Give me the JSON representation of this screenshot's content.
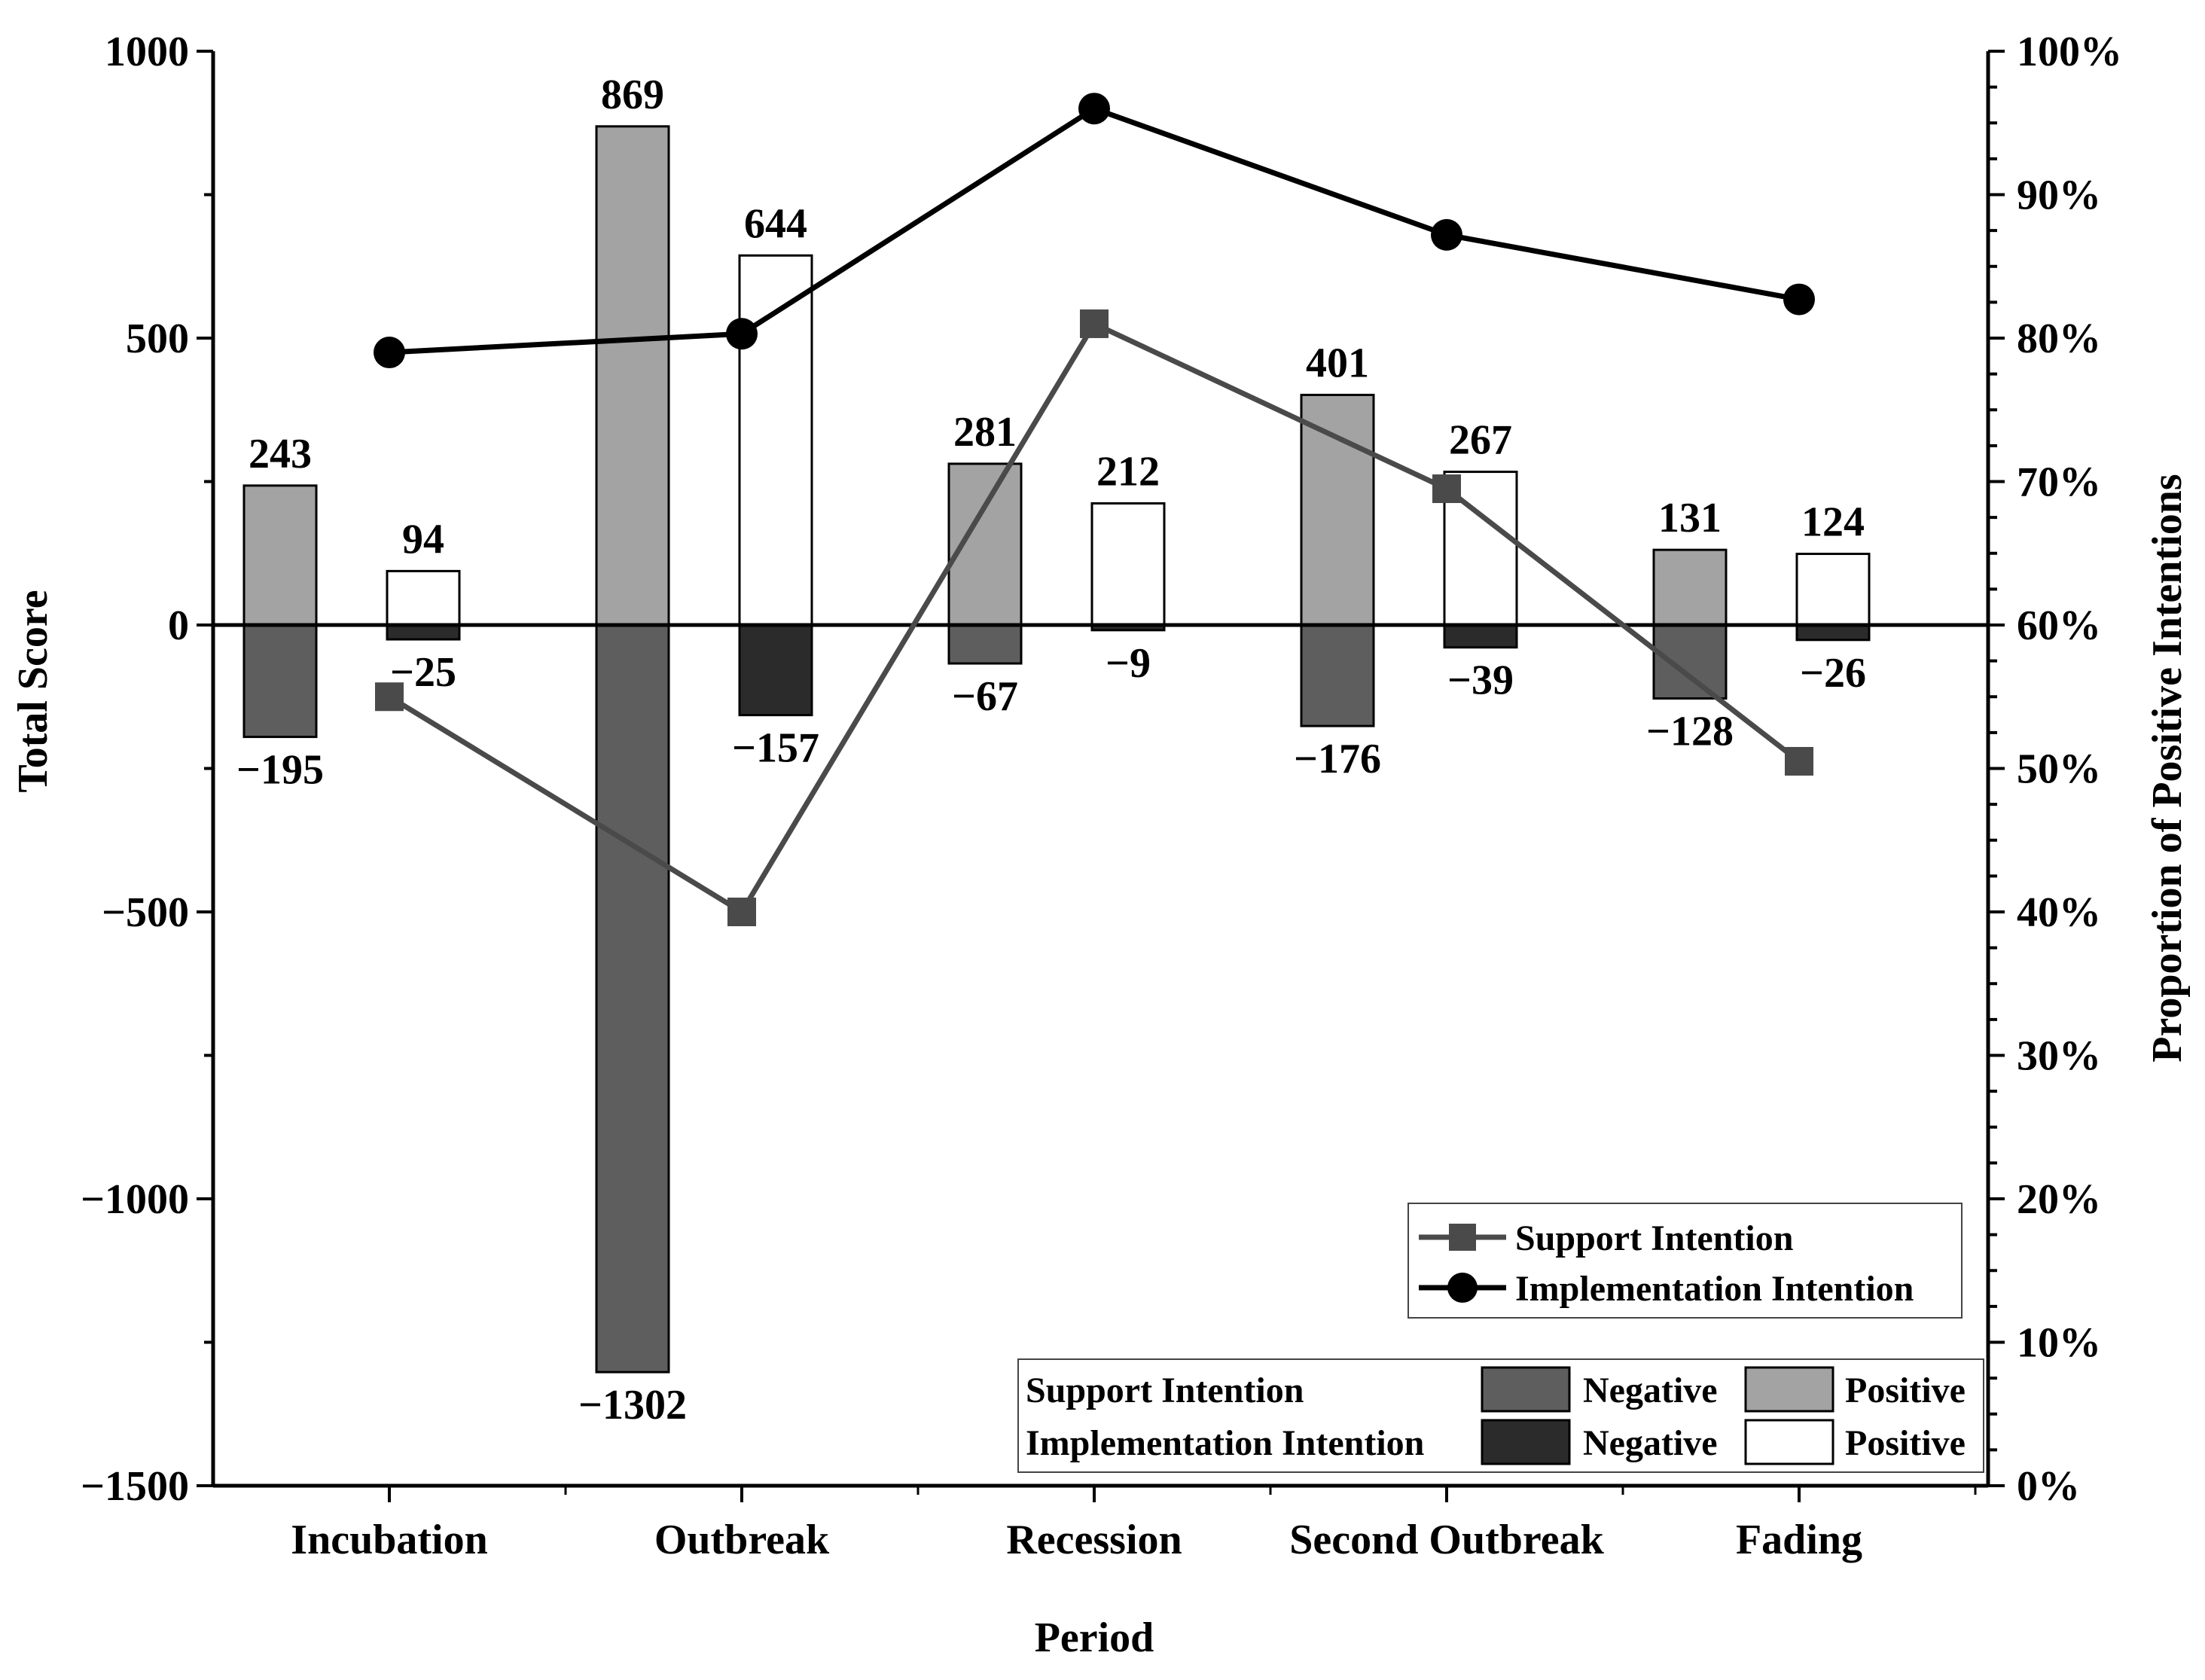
{
  "chart_data": {
    "type": "bar",
    "xlabel": "Period",
    "ylabel": "Total Score",
    "y2label": "Proportion of Positive Intentions",
    "ylim": [
      -1500,
      1000
    ],
    "y2lim": [
      0,
      100
    ],
    "yticks": [
      "1000",
      "500",
      "0",
      "−500",
      "−1000",
      "−1500"
    ],
    "ytick_values": [
      1000,
      500,
      0,
      -500,
      -1000,
      -1500
    ],
    "y2ticks": [
      "100%",
      "90%",
      "80%",
      "70%",
      "60%",
      "50%",
      "40%",
      "30%",
      "20%",
      "10%",
      "0%"
    ],
    "y2tick_values": [
      100,
      90,
      80,
      70,
      60,
      50,
      40,
      30,
      20,
      10,
      0
    ],
    "categories": [
      "Incubation",
      "Outbreak",
      "Recession",
      "Second Outbreak",
      "Fading"
    ],
    "bar_series": [
      {
        "name": "Support Intention Positive",
        "values": [
          243,
          869,
          281,
          401,
          131
        ],
        "labels": [
          "243",
          "869",
          "281",
          "401",
          "131"
        ],
        "color": "#a3a3a3"
      },
      {
        "name": "Support Intention Negative",
        "values": [
          -195,
          -1302,
          -67,
          -176,
          -128
        ],
        "labels": [
          "−195",
          "−1302",
          "−67",
          "−176",
          "−128"
        ],
        "color": "#5e5e5e"
      },
      {
        "name": "Implementation Intention Positive",
        "values": [
          94,
          644,
          212,
          267,
          124
        ],
        "labels": [
          "94",
          "644",
          "212",
          "267",
          "124"
        ],
        "color": "#ffffff"
      },
      {
        "name": "Implementation Intention Negative",
        "values": [
          -25,
          -157,
          -9,
          -39,
          -26
        ],
        "labels": [
          "−25",
          "−157",
          "−9",
          "−39",
          "−26"
        ],
        "color": "#2b2b2b"
      }
    ],
    "line_series": [
      {
        "name": "Support Intention",
        "axis": "right",
        "values": [
          55,
          40,
          81,
          69.5,
          50.5
        ],
        "marker": "square",
        "color": "#4a4a4a"
      },
      {
        "name": "Implementation Intention",
        "axis": "right",
        "values": [
          79,
          80.3,
          96,
          87.2,
          82.7
        ],
        "marker": "circle",
        "color": "#000000"
      }
    ],
    "legend_lines": [
      {
        "label": "Support Intention",
        "marker": "square",
        "color": "#4a4a4a"
      },
      {
        "label": "Implementation Intention",
        "marker": "circle",
        "color": "#000000"
      }
    ],
    "legend_bars": {
      "rows": [
        {
          "label": "Support Intention",
          "negative_label": "Negative",
          "positive_label": "Positive",
          "negative_color": "#5e5e5e",
          "positive_color": "#a3a3a3"
        },
        {
          "label": "Implementation Intention",
          "negative_label": "Negative",
          "positive_label": "Positive",
          "negative_color": "#2b2b2b",
          "positive_color": "#ffffff"
        }
      ]
    }
  }
}
